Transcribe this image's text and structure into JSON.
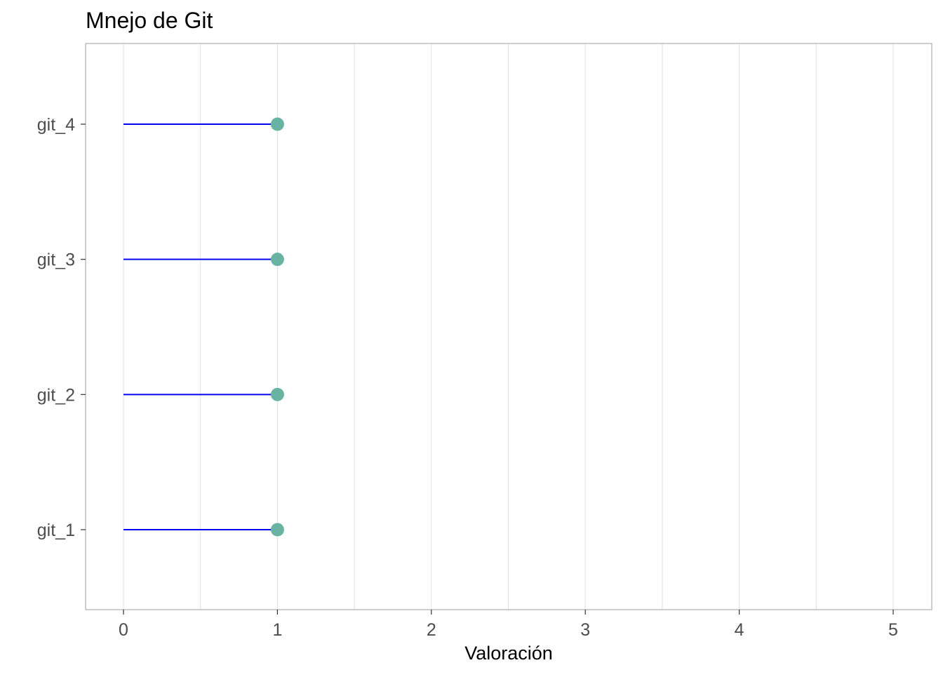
{
  "chart_data": {
    "type": "lollipop",
    "orientation": "horizontal",
    "title": "Mnejo de Git",
    "xlabel": "Valoración",
    "ylabel": "",
    "categories": [
      "git_1",
      "git_2",
      "git_3",
      "git_4"
    ],
    "values": [
      1,
      1,
      1,
      1
    ],
    "xlim": [
      0,
      5
    ],
    "x_ticks": [
      0,
      1,
      2,
      3,
      4,
      5
    ],
    "grid": "vertical major and minor",
    "legend": "none",
    "colors": {
      "stem": "#0000ee",
      "point": "#69b3a2",
      "grid": "#e0e0e0",
      "panel_border": "#b3b3b3"
    }
  }
}
